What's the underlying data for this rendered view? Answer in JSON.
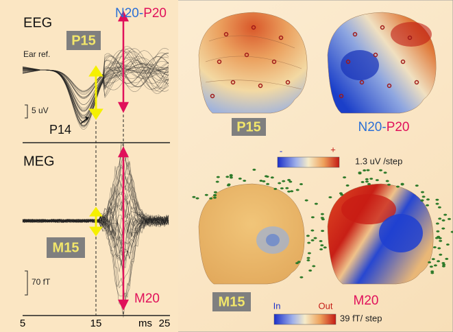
{
  "eeg_panel": {
    "title": "EEG",
    "reference": "Ear ref.",
    "peak_label": "P15",
    "scale": "5 uV",
    "early_peak": "P14",
    "interval": {
      "start": "N20",
      "separator": "-",
      "end": "P20"
    }
  },
  "meg_panel": {
    "title": "MEG",
    "peak_label": "M15",
    "scale": "70 fT",
    "late_peak": "M20"
  },
  "time_axis": {
    "ticks": [
      "5",
      "15",
      "25"
    ],
    "unit": "ms"
  },
  "maps": {
    "eeg_left": "P15",
    "eeg_right": {
      "start": "N20",
      "separator": "-",
      "end": "P20"
    },
    "eeg_colorbar": {
      "min": "-",
      "max": "+",
      "step": "1.3 uV /step"
    },
    "meg_left": "M15",
    "meg_right": "M20",
    "meg_colorbar": {
      "min": "In",
      "max": "Out",
      "step": "39 fT/ step"
    }
  }
}
